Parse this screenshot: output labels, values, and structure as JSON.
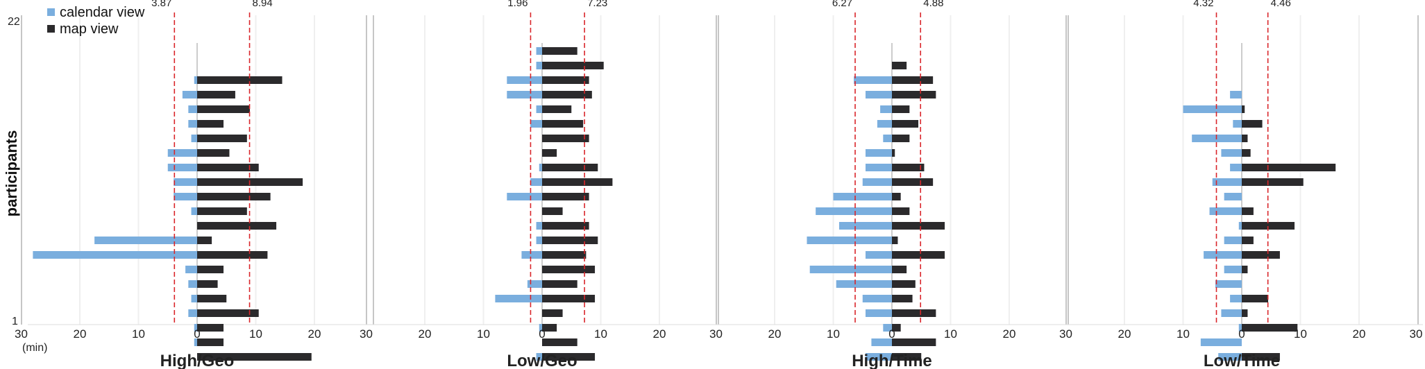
{
  "chart_data": {
    "type": "bar",
    "orientation": "horizontal-back-to-back",
    "ylabel": "participants",
    "y_tick_labels": [
      "22",
      "1"
    ],
    "unit_label": "(min)",
    "x_tick_labels": [
      "30",
      "20",
      "10",
      "0",
      "10",
      "20",
      "30",
      "20",
      "10",
      "0",
      "10",
      "20",
      "30",
      "20",
      "10",
      "0",
      "10",
      "20",
      "30",
      "20",
      "10",
      "0",
      "10",
      "20",
      "30"
    ],
    "legend": {
      "placement": "top-left",
      "entries": [
        {
          "label": "calendar view",
          "color": "#7aaede"
        },
        {
          "label": "map view",
          "color": "#2b2a2c"
        }
      ]
    },
    "colors": {
      "calendar": "#7aaede",
      "map": "#2b2a2c",
      "mean_line": "#d9262b"
    },
    "xlim_per_panel": [
      -30,
      30
    ],
    "panels": [
      {
        "title": "High/Geo",
        "mean_calendar": 3.87,
        "mean_map": 8.94,
        "mean_calendar_label": "3.87",
        "mean_map_label": "8.94",
        "calendar": [
          0,
          0.5,
          0.5,
          1.5,
          1.0,
          1.5,
          2.0,
          28.0,
          17.5,
          0,
          1.0,
          4.0,
          4.0,
          5.0,
          5.0,
          1.0,
          1.5,
          1.5,
          2.5,
          0.5,
          0,
          0
        ],
        "map": [
          19.5,
          4.5,
          4.5,
          10.5,
          5.0,
          3.5,
          4.5,
          12.0,
          2.5,
          13.5,
          8.5,
          12.5,
          18.0,
          10.5,
          5.5,
          8.5,
          4.5,
          9.0,
          6.5,
          14.5,
          0,
          0
        ]
      },
      {
        "title": "Low/Geo",
        "mean_calendar": 1.96,
        "mean_map": 7.23,
        "mean_calendar_label": "1.96",
        "mean_map_label": "7.23",
        "calendar": [
          1.0,
          0,
          0.5,
          0,
          8.0,
          2.5,
          0,
          3.5,
          1.0,
          1.0,
          0,
          6.0,
          2.0,
          0.5,
          0,
          0,
          2.0,
          1.0,
          6.0,
          6.0,
          1.0,
          1.0
        ],
        "map": [
          9.0,
          6.0,
          2.5,
          3.5,
          9.0,
          6.0,
          9.0,
          7.5,
          9.5,
          8.0,
          3.5,
          8.0,
          12.0,
          9.5,
          2.5,
          8.0,
          7.0,
          5.0,
          8.5,
          8.0,
          10.5,
          6.0
        ]
      },
      {
        "title": "High/Time",
        "mean_calendar": 6.27,
        "mean_map": 4.88,
        "mean_calendar_label": "6.27",
        "mean_map_label": "4.88",
        "calendar": [
          4.5,
          3.5,
          1.5,
          4.5,
          5.0,
          9.5,
          14.0,
          4.5,
          14.5,
          9.0,
          13.0,
          10.0,
          5.0,
          4.5,
          4.5,
          1.5,
          2.5,
          2.0,
          4.5,
          6.5,
          0,
          0
        ],
        "map": [
          5.0,
          7.5,
          1.5,
          7.5,
          3.5,
          4.0,
          2.5,
          9.0,
          1.0,
          9.0,
          3.0,
          1.5,
          7.0,
          5.5,
          0.5,
          3.0,
          4.5,
          3.0,
          7.5,
          7.0,
          2.5,
          0
        ]
      },
      {
        "title": "Low/Time",
        "mean_calendar": 4.32,
        "mean_map": 4.46,
        "mean_calendar_label": "4.32",
        "mean_map_label": "4.46",
        "calendar": [
          4.0,
          7.0,
          0.5,
          3.5,
          2.0,
          4.5,
          3.0,
          6.5,
          3.0,
          0.5,
          5.5,
          3.0,
          5.0,
          2.0,
          3.5,
          8.5,
          1.5,
          10.0,
          2.0,
          0,
          0,
          0
        ],
        "map": [
          6.5,
          0,
          9.5,
          1.0,
          4.5,
          0,
          1.0,
          6.5,
          2.0,
          9.0,
          2.0,
          0,
          10.5,
          16.0,
          1.5,
          1.0,
          3.5,
          0.5,
          0,
          0,
          0,
          0
        ]
      }
    ]
  }
}
